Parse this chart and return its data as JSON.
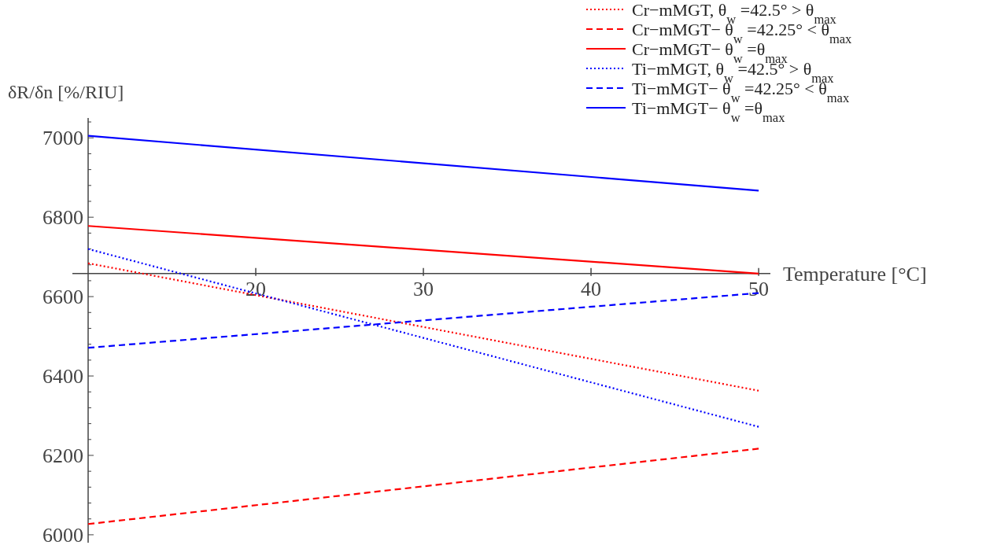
{
  "chart_data": {
    "type": "line",
    "xlabel": "Temperature [°C]",
    "ylabel": "δR/δn [%/RIU]",
    "xlim": [
      10,
      50.7
    ],
    "ylim": [
      5980,
      7050
    ],
    "xticks": [
      20,
      30,
      40,
      50
    ],
    "yticks": [
      6000,
      {
        "value": 6040,
        "label": null
      },
      {
        "value": 6080,
        "label": null
      },
      {
        "value": 6120,
        "label": null
      },
      {
        "value": 6160,
        "label": null
      },
      6200,
      {
        "value": 6240,
        "label": null
      },
      {
        "value": 6280,
        "label": null
      },
      {
        "value": 6320,
        "label": null
      },
      {
        "value": 6360,
        "label": null
      },
      6400,
      {
        "value": 6440,
        "label": null
      },
      {
        "value": 6480,
        "label": null
      },
      {
        "value": 6520,
        "label": null
      },
      {
        "value": 6560,
        "label": null
      },
      6600,
      {
        "value": 6640,
        "label": null
      },
      {
        "value": 6680,
        "label": null
      },
      {
        "value": 6720,
        "label": null
      },
      {
        "value": 6760,
        "label": null
      },
      6800,
      {
        "value": 6840,
        "label": null
      },
      {
        "value": 6880,
        "label": null
      },
      {
        "value": 6920,
        "label": null
      },
      {
        "value": 6960,
        "label": null
      },
      7000,
      {
        "value": 7040,
        "label": null
      }
    ],
    "grid": false,
    "legend": "top right",
    "marker": "none",
    "x": [
      10,
      50
    ],
    "series": [
      {
        "name": "Cr−mMGT, θ$_{w}$ =42.5° > θ$_{max}$",
        "color": "#ff0000",
        "line_style": "dotted",
        "values": [
          6684,
          6363
        ]
      },
      {
        "name": "Cr−mMGT− θ$_{w}$ =42.25° < θ$_{max}$",
        "color": "#ff0000",
        "line_style": "dashed",
        "values": [
          6027,
          6217
        ]
      },
      {
        "name": "Cr−mMGT− θ$_{w}$ =θ$_{max}$",
        "color": "#ff0000",
        "line_style": "solid",
        "values": [
          6778,
          6658
        ]
      },
      {
        "name": "Ti−mMGT, θ$_{w}$ =42.5° > θ$_{max}$",
        "color": "#0000ff",
        "line_style": "dotted",
        "values": [
          6720,
          6272
        ]
      },
      {
        "name": "Ti−mMGT− θ$_{w}$ =42.25° < θ$_{max}$",
        "color": "#0000ff",
        "line_style": "dashed",
        "values": [
          6471,
          6609
        ]
      },
      {
        "name": "Ti−mMGT− θ$_{w}$ =θ$_{max}$",
        "color": "#0000ff",
        "line_style": "solid",
        "values": [
          7005,
          6867
        ]
      }
    ]
  }
}
